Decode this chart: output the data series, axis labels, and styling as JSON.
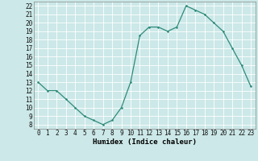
{
  "x": [
    0,
    1,
    2,
    3,
    4,
    5,
    6,
    7,
    8,
    9,
    10,
    11,
    12,
    13,
    14,
    15,
    16,
    17,
    18,
    19,
    20,
    21,
    22,
    23
  ],
  "y": [
    13,
    12,
    12,
    11,
    10,
    9,
    8.5,
    8,
    8.5,
    10,
    13,
    18.5,
    19.5,
    19.5,
    19,
    19.5,
    22,
    21.5,
    21,
    20,
    19,
    17,
    15,
    12.5
  ],
  "line_color": "#2e8b7a",
  "marker_color": "#2e8b7a",
  "bg_color": "#cce8e8",
  "grid_color": "#ffffff",
  "xlabel": "Humidex (Indice chaleur)",
  "ylim_min": 7.5,
  "ylim_max": 22.5,
  "xlim_min": -0.5,
  "xlim_max": 23.5,
  "yticks": [
    8,
    9,
    10,
    11,
    12,
    13,
    14,
    15,
    16,
    17,
    18,
    19,
    20,
    21,
    22
  ],
  "xticks": [
    0,
    1,
    2,
    3,
    4,
    5,
    6,
    7,
    8,
    9,
    10,
    11,
    12,
    13,
    14,
    15,
    16,
    17,
    18,
    19,
    20,
    21,
    22,
    23
  ],
  "tick_fontsize": 5.5,
  "xlabel_fontsize": 6.5,
  "line_width": 0.9,
  "marker_size": 2.5
}
